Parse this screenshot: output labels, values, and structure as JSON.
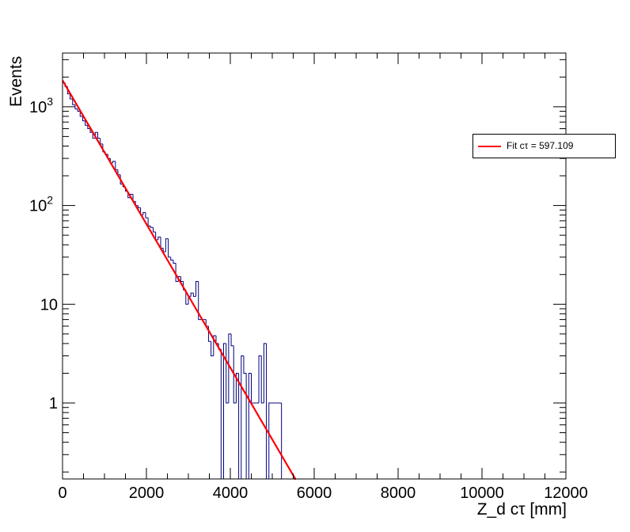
{
  "chart_data": {
    "type": "histogram-with-fit",
    "xlabel": "Z_d cτ [mm]",
    "ylabel": "Events",
    "xlim": [
      0,
      12000
    ],
    "ylim": [
      0.17,
      3500
    ],
    "yscale": "log",
    "x_ticks": [
      "0",
      "2000",
      "4000",
      "6000",
      "8000",
      "10000",
      "12000"
    ],
    "y_ticks": [
      {
        "value": 1,
        "label": "1"
      },
      {
        "value": 10,
        "label": "10"
      },
      {
        "value": 100,
        "label": "10",
        "exponent": "2"
      },
      {
        "value": 1000,
        "label": "10",
        "exponent": "3"
      }
    ],
    "grid": false,
    "histogram": {
      "color": "#000080",
      "bin_width": 60,
      "bins": [
        [
          0,
          1750
        ],
        [
          60,
          1600
        ],
        [
          120,
          1350
        ],
        [
          180,
          1200
        ],
        [
          240,
          1050
        ],
        [
          300,
          950
        ],
        [
          360,
          900
        ],
        [
          420,
          800
        ],
        [
          480,
          720
        ],
        [
          540,
          650
        ],
        [
          600,
          600
        ],
        [
          660,
          550
        ],
        [
          720,
          480
        ],
        [
          780,
          550
        ],
        [
          840,
          480
        ],
        [
          900,
          420
        ],
        [
          960,
          350
        ],
        [
          1020,
          330
        ],
        [
          1080,
          300
        ],
        [
          1140,
          270
        ],
        [
          1200,
          280
        ],
        [
          1260,
          230
        ],
        [
          1320,
          205
        ],
        [
          1380,
          165
        ],
        [
          1440,
          155
        ],
        [
          1500,
          140
        ],
        [
          1560,
          120
        ],
        [
          1620,
          130
        ],
        [
          1680,
          110
        ],
        [
          1740,
          100
        ],
        [
          1800,
          95
        ],
        [
          1860,
          80
        ],
        [
          1920,
          85
        ],
        [
          1980,
          75
        ],
        [
          2040,
          62
        ],
        [
          2100,
          60
        ],
        [
          2160,
          54
        ],
        [
          2220,
          45
        ],
        [
          2280,
          48
        ],
        [
          2340,
          37
        ],
        [
          2400,
          34
        ],
        [
          2460,
          46
        ],
        [
          2520,
          30
        ],
        [
          2580,
          28
        ],
        [
          2640,
          26
        ],
        [
          2700,
          17
        ],
        [
          2760,
          19
        ],
        [
          2820,
          17
        ],
        [
          2880,
          14
        ],
        [
          2940,
          10
        ],
        [
          3000,
          12
        ],
        [
          3060,
          13
        ],
        [
          3120,
          12
        ],
        [
          3180,
          17
        ],
        [
          3240,
          7
        ],
        [
          3300,
          7
        ],
        [
          3360,
          7
        ],
        [
          3420,
          6
        ],
        [
          3480,
          4.2
        ],
        [
          3540,
          3
        ],
        [
          3600,
          4.8
        ],
        [
          3660,
          4
        ],
        [
          3720,
          3.5
        ],
        [
          3780,
          0
        ],
        [
          3840,
          4
        ],
        [
          3900,
          1
        ],
        [
          3960,
          5
        ],
        [
          4020,
          3.8
        ],
        [
          4080,
          1
        ],
        [
          4140,
          2
        ],
        [
          4200,
          0
        ],
        [
          4260,
          3
        ],
        [
          4320,
          2
        ],
        [
          4380,
          0
        ],
        [
          4440,
          2
        ],
        [
          4500,
          1
        ],
        [
          4560,
          1
        ],
        [
          4620,
          1
        ],
        [
          4680,
          3
        ],
        [
          4740,
          1
        ],
        [
          4800,
          4
        ],
        [
          4860,
          0
        ],
        [
          4920,
          1
        ],
        [
          4980,
          1
        ],
        [
          5040,
          1
        ],
        [
          5100,
          1
        ],
        [
          5160,
          1
        ]
      ]
    },
    "fit": {
      "color": "#ff0000",
      "type": "exponential",
      "amplitude": 1850,
      "ctau": 597.109,
      "x_range": [
        0,
        5560
      ]
    },
    "legend": {
      "position": "top-right",
      "entries": [
        {
          "label": "Fit cτ = 597.109",
          "color": "#ff0000"
        }
      ]
    }
  }
}
